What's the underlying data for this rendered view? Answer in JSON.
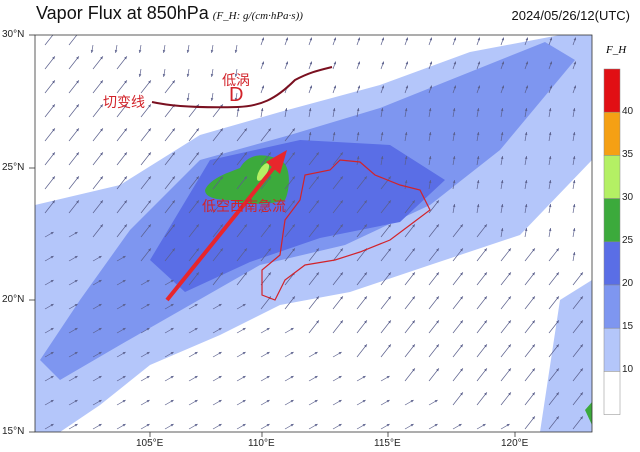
{
  "header": {
    "title": "Vapor Flux at 850hPa",
    "unit": "(F_H: g/(cm·hPa·s))",
    "time": "2024/05/26/12(UTC)"
  },
  "map": {
    "lat_labels": [
      "30°N",
      "25°N",
      "20°N",
      "15°N"
    ],
    "lon_labels": [
      "105°E",
      "110°E",
      "115°E",
      "120°E"
    ],
    "annotations": {
      "vortex_label": "低涡",
      "vortex_symbol": "D",
      "shear_line": "切变线",
      "jet": "低空西南急流"
    }
  },
  "colorbar": {
    "title": "F_H",
    "ticks": [
      "10",
      "15",
      "20",
      "25",
      "30",
      "35",
      "40"
    ],
    "levels": [
      {
        "range": "<10",
        "color": "#ffffff"
      },
      {
        "range": "10-15",
        "color": "#b4c6fa"
      },
      {
        "range": "15-20",
        "color": "#7e96f0"
      },
      {
        "range": "20-25",
        "color": "#5a6ee6"
      },
      {
        "range": "25-30",
        "color": "#3caa3c"
      },
      {
        "range": "30-35",
        "color": "#b4f064"
      },
      {
        "range": "35-40",
        "color": "#f5a014"
      },
      {
        "range": ">40",
        "color": "#e10f14"
      }
    ]
  },
  "colors": {
    "jet_arrow": "#e8262c",
    "shear_line": "#7a1020",
    "province_border": "#d2232a"
  }
}
